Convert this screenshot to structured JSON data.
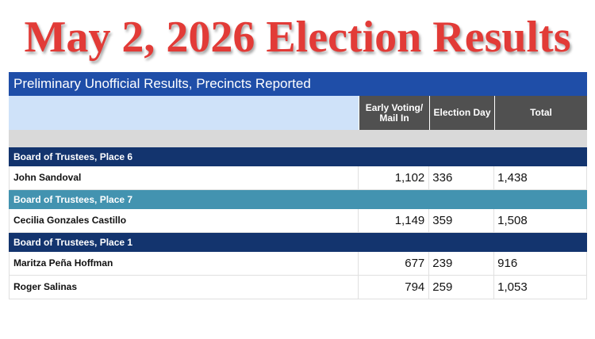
{
  "title": "May 2, 2026 Election Results",
  "banner": "Preliminary Unofficial Results, Precincts Reported",
  "columns": [
    "Early Voting/ Mail In",
    "Election Day",
    "Total"
  ],
  "races": [
    {
      "name": "Board of Trustees, Place 6",
      "color": "#13346e",
      "candidates": [
        {
          "name": "John Sandoval",
          "early": "1,102",
          "day": "336",
          "total": "1,438"
        }
      ]
    },
    {
      "name": "Board of Trustees, Place 7",
      "color": "#4393b0",
      "candidates": [
        {
          "name": "Cecilia Gonzales Castillo",
          "early": "1,149",
          "day": "359",
          "total": "1,508"
        }
      ]
    },
    {
      "name": "Board of Trustees, Place 1",
      "color": "#13346e",
      "candidates": [
        {
          "name": "Maritza Peña Hoffman",
          "early": "677",
          "day": "239",
          "total": "916"
        },
        {
          "name": "Roger Salinas",
          "early": "794",
          "day": "259",
          "total": "1,053"
        }
      ]
    }
  ]
}
